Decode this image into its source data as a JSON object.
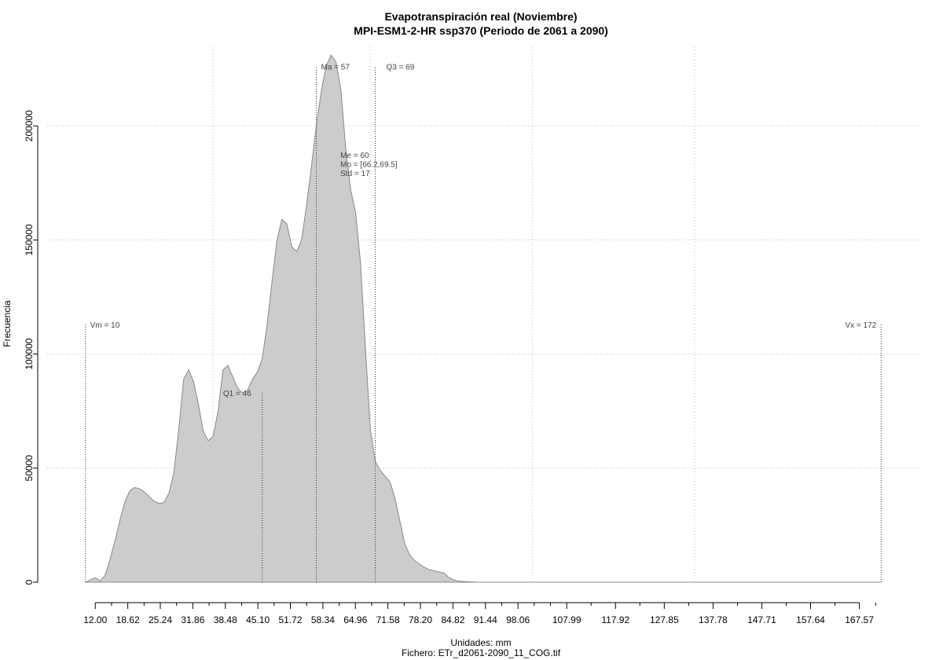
{
  "chart_data": {
    "type": "area",
    "title": "Evapotranspiración real (Noviembre)",
    "subtitle": "MPI-ESM1-2-HR ssp370 (Periodo de 2061 a 2090)",
    "xlabel": "Unidades: mm",
    "ylabel": "Frecuencia",
    "caption": "Fichero: ETr_d2061-2090_11_COG.tif",
    "xlim": [
      10,
      172
    ],
    "ylim": [
      0,
      230000
    ],
    "grid": true,
    "fill_color": "#cccccc",
    "line_color": "#888888",
    "y_ticks": [
      0,
      50000,
      100000,
      150000,
      200000
    ],
    "y_tick_labels": [
      "0",
      "50000",
      "100000",
      "150000",
      "200000"
    ],
    "x_ticks": [
      12.0,
      18.62,
      25.24,
      31.86,
      38.48,
      45.1,
      51.72,
      58.34,
      64.96,
      71.58,
      78.2,
      84.82,
      91.44,
      98.06,
      107.99,
      117.92,
      127.85,
      137.78,
      147.71,
      157.64,
      167.57
    ],
    "x_tick_labels": [
      "12.00",
      "18.62",
      "25.24",
      "31.86",
      "38.48",
      "45.10",
      "51.72",
      "58.34",
      "64.96",
      "71.58",
      "78.20",
      "84.82",
      "91.44",
      "98.06",
      "107.99",
      "117.92",
      "127.85",
      "137.78",
      "147.71",
      "157.64",
      "167.57"
    ],
    "x_minor_ticks": [
      15.31,
      21.93,
      28.55,
      35.17,
      41.79,
      48.41,
      55.03,
      61.65,
      68.27,
      74.89,
      81.51,
      88.13,
      94.75,
      101.37,
      104.68,
      112.95,
      122.88,
      132.82,
      142.75,
      152.68,
      162.61,
      170.88
    ],
    "v_gridlines": [
      36,
      68,
      101,
      134
    ],
    "h_gridlines": [
      50000,
      100000,
      150000,
      200000
    ],
    "x": [
      10,
      11,
      12,
      13,
      14,
      15,
      16,
      17,
      18,
      19,
      20,
      21,
      22,
      23,
      24,
      25,
      26,
      27,
      28,
      29,
      30,
      31,
      32,
      33,
      34,
      35,
      36,
      37,
      38,
      39,
      40,
      41,
      42,
      43,
      44,
      45,
      46,
      47,
      48,
      49,
      50,
      51,
      52,
      53,
      54,
      55,
      56,
      57,
      58,
      59,
      60,
      61,
      62,
      63,
      64,
      65,
      66,
      67,
      68,
      69,
      70,
      71,
      72,
      73,
      74,
      75,
      76,
      77,
      78,
      79,
      80,
      81,
      82,
      83,
      84,
      85,
      86,
      87,
      88,
      89,
      90,
      91,
      92,
      93,
      94,
      95,
      96,
      97,
      98,
      99,
      100,
      102,
      105,
      110,
      120,
      130,
      140,
      150,
      160,
      170,
      172
    ],
    "values": [
      0,
      1000,
      2000,
      500,
      3000,
      10000,
      18000,
      27000,
      35000,
      40000,
      41500,
      41000,
      39500,
      37500,
      35500,
      34500,
      35000,
      39000,
      48000,
      67000,
      89000,
      93000,
      88000,
      78000,
      66000,
      62000,
      64000,
      75000,
      93000,
      95000,
      90000,
      85000,
      83000,
      84000,
      89000,
      92000,
      98000,
      113000,
      132000,
      150000,
      159000,
      157000,
      147000,
      145000,
      150000,
      165000,
      182000,
      200000,
      215000,
      226000,
      231000,
      228000,
      216000,
      190000,
      172000,
      162000,
      140000,
      103000,
      67000,
      53000,
      49000,
      46500,
      44000,
      37000,
      27000,
      17000,
      12000,
      9500,
      8000,
      6500,
      5500,
      5000,
      4500,
      4000,
      2000,
      1000,
      500,
      300,
      200,
      100,
      0,
      0,
      0,
      0,
      0,
      0,
      0,
      0,
      0,
      0,
      0,
      0,
      0,
      0,
      0,
      0,
      0,
      0,
      0,
      0,
      0
    ],
    "annotations": [
      {
        "label": "Vm = 10",
        "x": 10,
        "y_top": 113000,
        "anchor": "start",
        "dx": 6
      },
      {
        "label": "Q1 = 46",
        "x": 46,
        "y_top": 83000,
        "anchor": "end",
        "dx": -14
      },
      {
        "label": "Ma = 57",
        "x": 57,
        "y_top": 226000,
        "anchor": "start",
        "dx": 6
      },
      {
        "label": "Q3 = 69",
        "x": 69,
        "y_top": 226000,
        "anchor": "start",
        "dx": 14
      },
      {
        "label": "Vx = 172",
        "x": 172,
        "y_top": 113000,
        "anchor": "end",
        "dx": -6
      }
    ],
    "stats_lines": [
      "Me = 60",
      "Mo = [66.2,69.5]",
      "Std = 17"
    ],
    "stats_x": 61.9,
    "stats_y": 186000
  }
}
